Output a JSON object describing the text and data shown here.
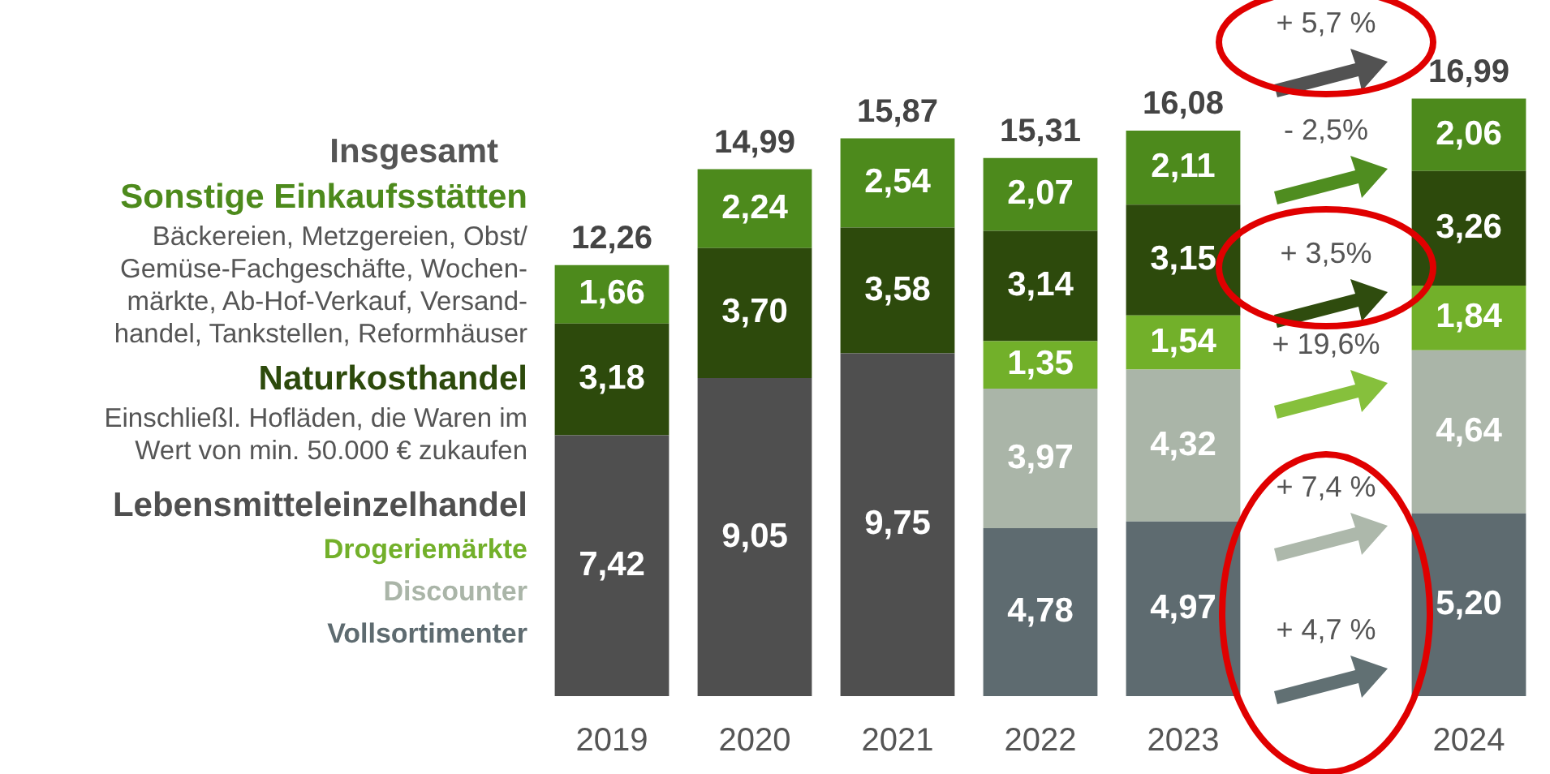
{
  "chart_data": {
    "type": "bar",
    "stacked": true,
    "legend": "left",
    "grid": false,
    "tick_labels": "x",
    "legend_title": "Insgesamt",
    "categories": [
      "2019",
      "2020",
      "2021",
      "2022",
      "2023",
      null,
      "2024"
    ],
    "series": [
      {
        "name": "Lebensmitteleinzelhandel",
        "color": "#4f4f4f",
        "values": [
          7.42,
          9.05,
          9.75,
          null,
          null,
          null,
          null
        ],
        "value_labels": [
          "7,42",
          "9,05",
          "9,75",
          null,
          null,
          null,
          null
        ]
      },
      {
        "name": "Vollsortimenter",
        "color": "#5e6b70",
        "values": [
          null,
          null,
          null,
          4.78,
          4.97,
          null,
          5.2
        ],
        "value_labels": [
          null,
          null,
          null,
          "4,78",
          "4,97",
          null,
          "5,20"
        ]
      },
      {
        "name": "Discounter",
        "color": "#aab5a8",
        "values": [
          null,
          null,
          null,
          3.97,
          4.32,
          null,
          4.64
        ],
        "value_labels": [
          null,
          null,
          null,
          "3,97",
          "4,32",
          null,
          "4,64"
        ]
      },
      {
        "name": "Drogeriemärkte",
        "color": "#72b02a",
        "values": [
          null,
          null,
          null,
          1.35,
          1.54,
          null,
          1.84
        ],
        "value_labels": [
          null,
          null,
          null,
          "1,35",
          "1,54",
          null,
          "1,84"
        ]
      },
      {
        "name": "Naturkosthandel",
        "color": "#2d4a0c",
        "values": [
          3.18,
          3.7,
          3.58,
          3.14,
          3.15,
          null,
          3.26
        ],
        "value_labels": [
          "3,18",
          "3,70",
          "3,58",
          "3,14",
          "3,15",
          null,
          "3,26"
        ]
      },
      {
        "name": "Sonstige Einkaufsstätten",
        "color": "#4d8a1c",
        "values": [
          1.66,
          2.24,
          2.54,
          2.07,
          2.11,
          null,
          2.06
        ],
        "value_labels": [
          "1,66",
          "2,24",
          "2,54",
          "2,07",
          "2,11",
          null,
          "2,06"
        ]
      }
    ],
    "totals": [
      "12,26",
      "14,99",
      "15,87",
      "15,31",
      "16,08",
      null,
      "16,99"
    ],
    "annotations": [
      "Bäckereien, Metzgereien, Obst/ Gemüse-Fachgeschäfte, Wochen-märkte, Ab-Hof-Verkauf, Versand-handel, Tankstellen, Reformhäuser",
      "Einschließl. Hofläden, die Waren im Wert von min. 50.000 € zukaufen",
      "+ 5,7 %",
      "- 2,5%",
      "+ 3,5%",
      "+ 19,6%",
      "+ 7,4 %",
      "+ 4,7 %"
    ]
  }
}
